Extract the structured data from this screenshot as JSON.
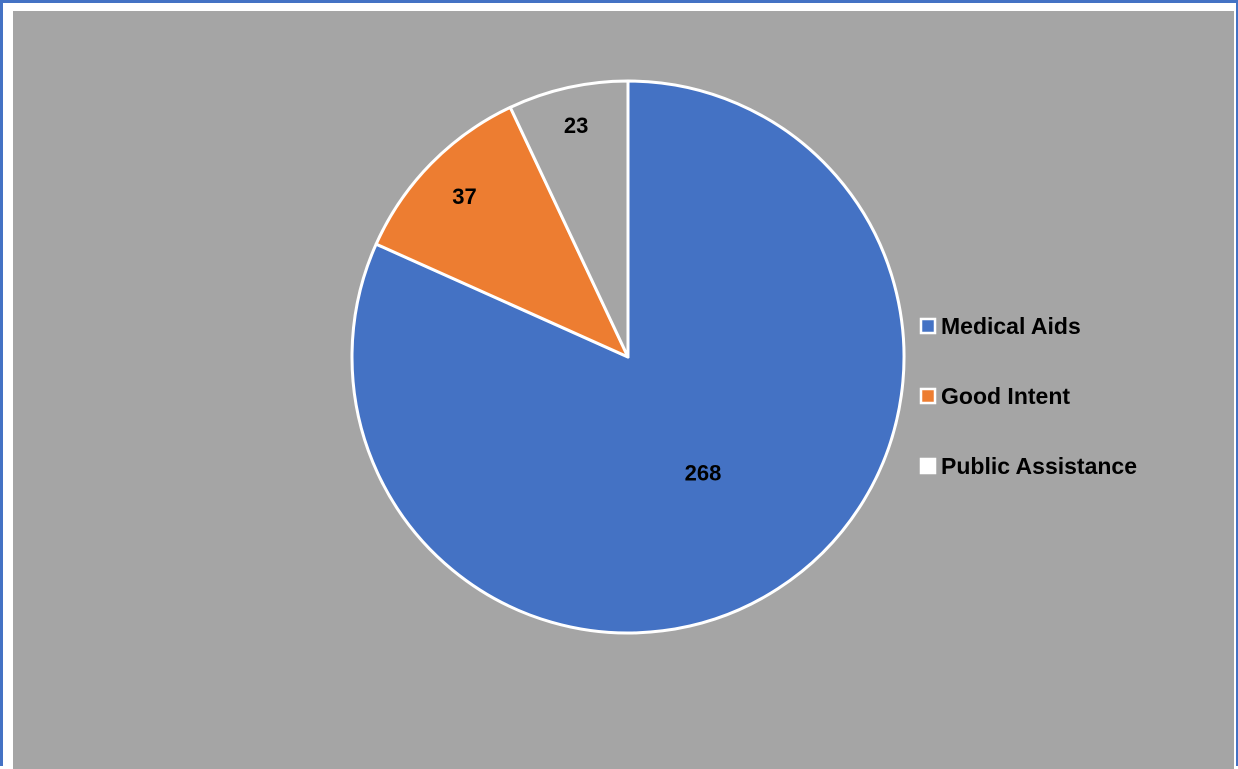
{
  "chart_data": {
    "type": "pie",
    "categories": [
      "Medical Aids",
      "Good Intent",
      "Public Assistance"
    ],
    "values": [
      268,
      37,
      23
    ],
    "colors": [
      "#4472c4",
      "#ed7d31",
      "#a5a5a5"
    ],
    "title": "",
    "legend": {
      "position": "right",
      "entries": [
        "Medical Aids",
        "Good Intent",
        "Public Assistance"
      ],
      "marker_fill": [
        "#4472c4",
        "#ed7d31",
        "#ffffff"
      ]
    },
    "data_labels": [
      "268",
      "37",
      "23"
    ],
    "start_angle_deg": 0,
    "direction": "clockwise"
  },
  "style": {
    "background": "#a5a5a5",
    "frame_color": "#4472c4",
    "slice_border": "#ffffff"
  }
}
